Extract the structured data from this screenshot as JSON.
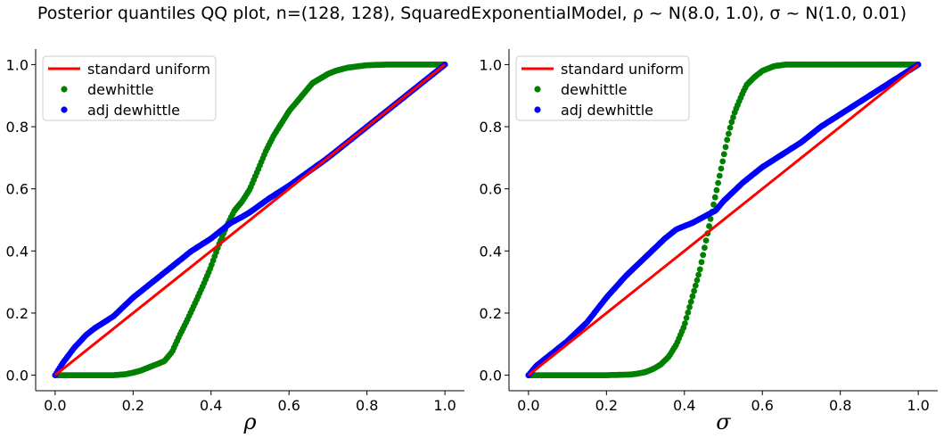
{
  "figure": {
    "title": "Posterior quantiles QQ plot, n=(128, 128), SquaredExponentialModel, ρ ~ N(8.0, 1.0), σ ~ N(1.0, 0.01)"
  },
  "colors": {
    "uniform": "#ff0000",
    "dewhittle": "#008000",
    "adj_dewhittle": "#0000ff"
  },
  "chart_data": [
    {
      "type": "scatter",
      "xlabel": "ρ",
      "ylabel": "",
      "xlim": [
        -0.05,
        1.05
      ],
      "ylim": [
        -0.05,
        1.05
      ],
      "xticks": [
        "0.0",
        "0.2",
        "0.4",
        "0.6",
        "0.8",
        "1.0"
      ],
      "yticks": [
        "0.0",
        "0.2",
        "0.4",
        "0.6",
        "0.8",
        "1.0"
      ],
      "grid": false,
      "legend": "upper-left",
      "series": [
        {
          "name": "standard uniform",
          "kind": "line",
          "x": [
            0.0,
            1.0
          ],
          "y": [
            0.0,
            1.0
          ]
        },
        {
          "name": "dewhittle",
          "kind": "points",
          "x": [
            0.0,
            0.05,
            0.1,
            0.15,
            0.18,
            0.2,
            0.22,
            0.25,
            0.28,
            0.3,
            0.32,
            0.34,
            0.36,
            0.38,
            0.4,
            0.42,
            0.44,
            0.46,
            0.48,
            0.5,
            0.52,
            0.54,
            0.56,
            0.58,
            0.6,
            0.62,
            0.64,
            0.66,
            0.68,
            0.7,
            0.72,
            0.75,
            0.78,
            0.8,
            0.85,
            0.9,
            0.95,
            1.0
          ],
          "y": [
            0.0,
            0.0,
            0.0,
            0.0,
            0.003,
            0.008,
            0.015,
            0.03,
            0.045,
            0.075,
            0.13,
            0.18,
            0.235,
            0.29,
            0.35,
            0.42,
            0.48,
            0.53,
            0.56,
            0.6,
            0.66,
            0.72,
            0.77,
            0.81,
            0.85,
            0.88,
            0.91,
            0.94,
            0.955,
            0.97,
            0.98,
            0.99,
            0.995,
            0.998,
            1.0,
            1.0,
            1.0,
            1.0
          ]
        },
        {
          "name": "adj dewhittle",
          "kind": "points",
          "x": [
            0.0,
            0.02,
            0.05,
            0.08,
            0.1,
            0.15,
            0.2,
            0.25,
            0.3,
            0.35,
            0.4,
            0.45,
            0.48,
            0.5,
            0.55,
            0.6,
            0.65,
            0.7,
            0.75,
            0.8,
            0.85,
            0.9,
            0.95,
            1.0
          ],
          "y": [
            0.0,
            0.04,
            0.09,
            0.13,
            0.15,
            0.19,
            0.25,
            0.3,
            0.35,
            0.4,
            0.44,
            0.49,
            0.51,
            0.525,
            0.57,
            0.61,
            0.655,
            0.7,
            0.75,
            0.8,
            0.85,
            0.9,
            0.95,
            1.0
          ]
        }
      ]
    },
    {
      "type": "scatter",
      "xlabel": "σ",
      "ylabel": "",
      "xlim": [
        -0.05,
        1.05
      ],
      "ylim": [
        -0.05,
        1.05
      ],
      "xticks": [
        "0.0",
        "0.2",
        "0.4",
        "0.6",
        "0.8",
        "1.0"
      ],
      "yticks": [
        "0.0",
        "0.2",
        "0.4",
        "0.6",
        "0.8",
        "1.0"
      ],
      "grid": false,
      "legend": "upper-left",
      "series": [
        {
          "name": "standard uniform",
          "kind": "line",
          "x": [
            0.0,
            1.0
          ],
          "y": [
            0.0,
            1.0
          ]
        },
        {
          "name": "dewhittle",
          "kind": "points",
          "x": [
            0.0,
            0.1,
            0.2,
            0.26,
            0.28,
            0.3,
            0.32,
            0.34,
            0.36,
            0.38,
            0.4,
            0.42,
            0.44,
            0.45,
            0.46,
            0.47,
            0.48,
            0.49,
            0.5,
            0.51,
            0.52,
            0.53,
            0.54,
            0.55,
            0.56,
            0.58,
            0.6,
            0.63,
            0.66,
            0.7,
            0.8,
            0.9,
            1.0
          ],
          "y": [
            0.0,
            0.0,
            0.0,
            0.002,
            0.005,
            0.01,
            0.02,
            0.035,
            0.06,
            0.1,
            0.16,
            0.25,
            0.34,
            0.4,
            0.46,
            0.52,
            0.58,
            0.64,
            0.7,
            0.76,
            0.81,
            0.85,
            0.88,
            0.91,
            0.935,
            0.96,
            0.98,
            0.995,
            1.0,
            1.0,
            1.0,
            1.0,
            1.0
          ]
        },
        {
          "name": "adj dewhittle",
          "kind": "points",
          "x": [
            0.0,
            0.02,
            0.05,
            0.08,
            0.1,
            0.15,
            0.2,
            0.25,
            0.3,
            0.35,
            0.38,
            0.42,
            0.45,
            0.48,
            0.5,
            0.55,
            0.6,
            0.65,
            0.7,
            0.75,
            0.8,
            0.85,
            0.9,
            0.95,
            1.0
          ],
          "y": [
            0.0,
            0.03,
            0.06,
            0.09,
            0.11,
            0.17,
            0.25,
            0.32,
            0.38,
            0.44,
            0.47,
            0.49,
            0.51,
            0.53,
            0.56,
            0.62,
            0.67,
            0.71,
            0.75,
            0.8,
            0.84,
            0.88,
            0.92,
            0.96,
            1.0
          ]
        }
      ]
    }
  ]
}
